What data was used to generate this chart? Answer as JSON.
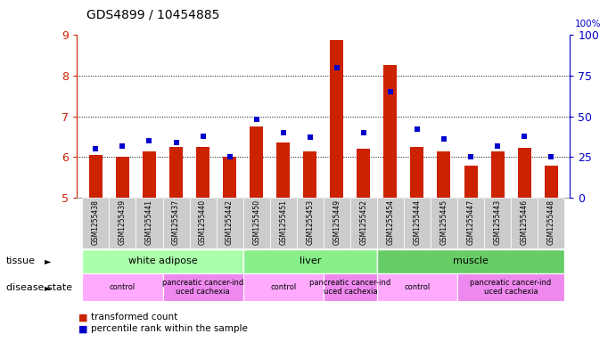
{
  "title": "GDS4899 / 10454885",
  "samples": [
    "GSM1255438",
    "GSM1255439",
    "GSM1255441",
    "GSM1255437",
    "GSM1255440",
    "GSM1255442",
    "GSM1255450",
    "GSM1255451",
    "GSM1255453",
    "GSM1255449",
    "GSM1255452",
    "GSM1255454",
    "GSM1255444",
    "GSM1255445",
    "GSM1255447",
    "GSM1255443",
    "GSM1255446",
    "GSM1255448"
  ],
  "bar_values": [
    6.05,
    6.0,
    6.15,
    6.25,
    6.25,
    6.0,
    6.75,
    6.35,
    6.15,
    8.88,
    6.2,
    8.27,
    6.25,
    6.15,
    5.78,
    6.15,
    6.22,
    5.78
  ],
  "percentile_pct": [
    30,
    32,
    35,
    34,
    38,
    25,
    48,
    40,
    37,
    80,
    40,
    65,
    42,
    36,
    25,
    32,
    38,
    25
  ],
  "ylim_left": [
    5,
    9
  ],
  "ylim_right": [
    0,
    100
  ],
  "yticks_left": [
    5,
    6,
    7,
    8,
    9
  ],
  "yticks_right": [
    0,
    25,
    50,
    75,
    100
  ],
  "bar_color": "#cc2200",
  "percentile_color": "#0000cc",
  "bar_bottom": 5,
  "right_axis_color": "#0000cc",
  "left_axis_color": "#cc2200",
  "legend_red_label": "transformed count",
  "legend_blue_label": "percentile rank within the sample",
  "tissue_label": "tissue",
  "disease_label": "disease state",
  "xticklabel_bg": "#cccccc",
  "tissue_groups": [
    {
      "label": "white adipose",
      "start": 0,
      "end": 6,
      "color": "#aaffaa"
    },
    {
      "label": "liver",
      "start": 6,
      "end": 11,
      "color": "#88ee88"
    },
    {
      "label": "muscle",
      "start": 11,
      "end": 18,
      "color": "#66cc66"
    }
  ],
  "disease_groups": [
    {
      "label": "control",
      "start": 0,
      "end": 3,
      "color": "#ffaaff"
    },
    {
      "label": "pancreatic cancer-ind\nuced cachexia",
      "start": 3,
      "end": 6,
      "color": "#ee88ee"
    },
    {
      "label": "control",
      "start": 6,
      "end": 9,
      "color": "#ffaaff"
    },
    {
      "label": "pancreatic cancer-ind\nuced cachexia",
      "start": 9,
      "end": 11,
      "color": "#ee88ee"
    },
    {
      "label": "control",
      "start": 11,
      "end": 14,
      "color": "#ffaaff"
    },
    {
      "label": "pancreatic cancer-ind\nuced cachexia",
      "start": 14,
      "end": 18,
      "color": "#ee88ee"
    }
  ]
}
